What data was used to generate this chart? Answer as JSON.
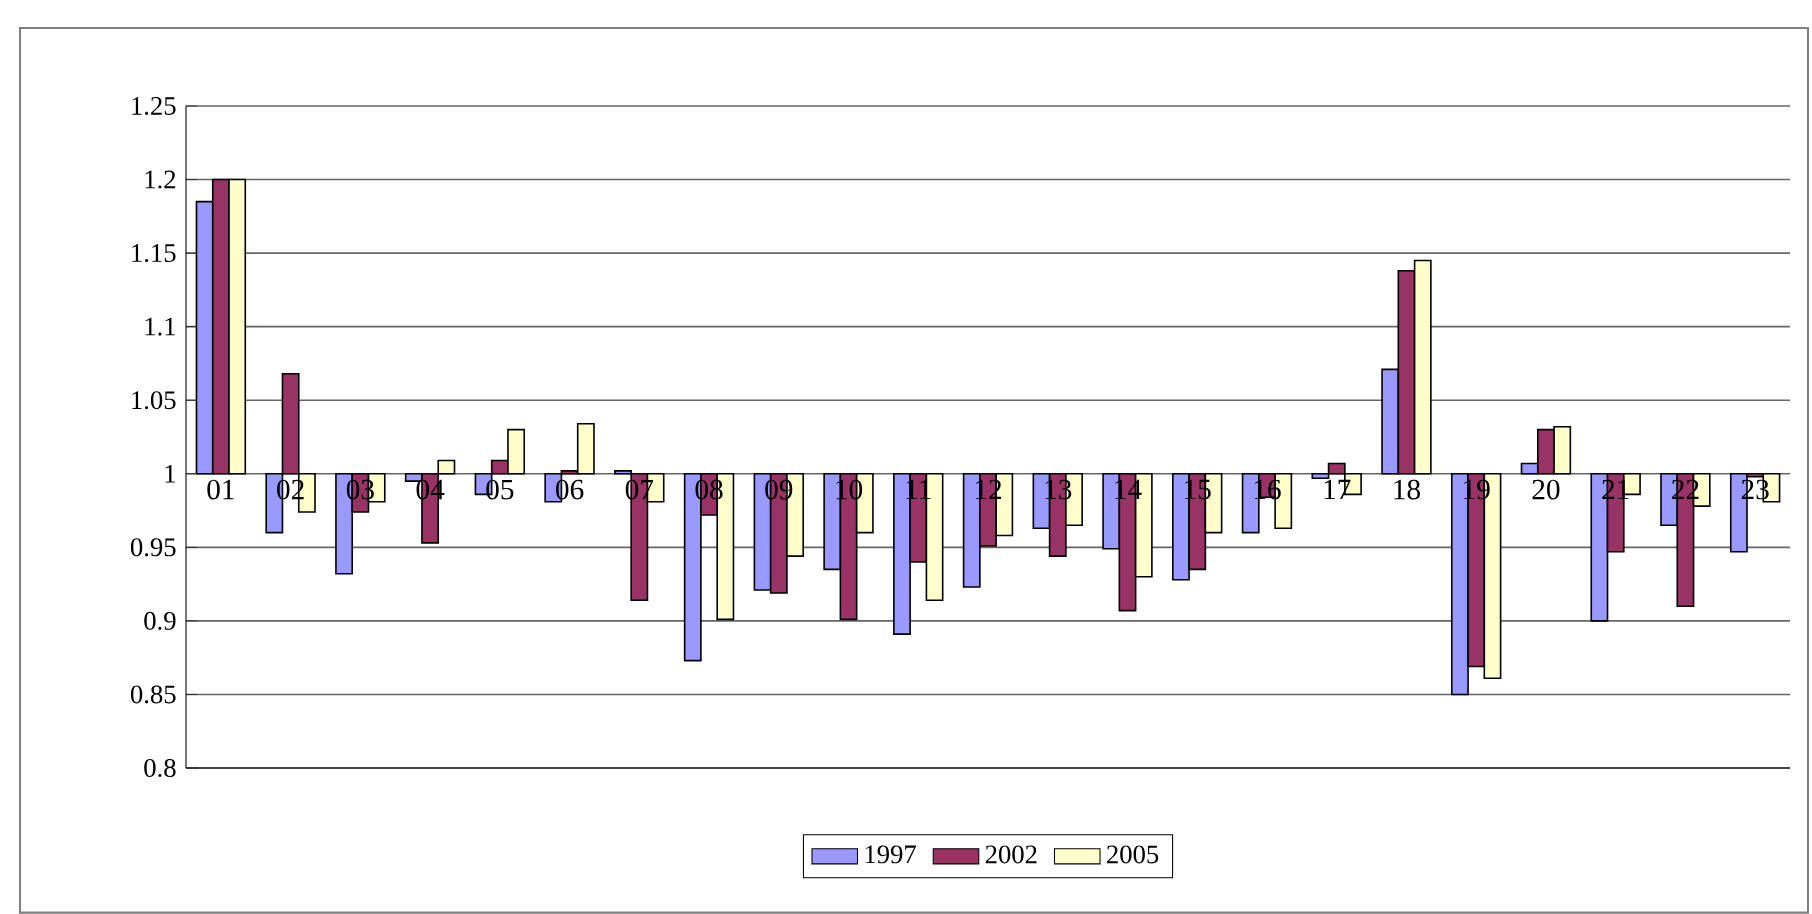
{
  "chart_data": {
    "type": "bar",
    "categories": [
      "01",
      "02",
      "03",
      "04",
      "05",
      "06",
      "07",
      "08",
      "09",
      "10",
      "11",
      "12",
      "13",
      "14",
      "15",
      "16",
      "17",
      "18",
      "19",
      "20",
      "21",
      "22",
      "23"
    ],
    "series": [
      {
        "name": "1997",
        "color": "#9999ff",
        "base": [
          1,
          1,
          1,
          1,
          1,
          1,
          1,
          1,
          1,
          1,
          1,
          1,
          1,
          1,
          1,
          1,
          1,
          1,
          1,
          1,
          1,
          1,
          1
        ],
        "values": [
          0.185,
          -0.04,
          -0.068,
          -0.005,
          -0.014,
          -0.019,
          0.002,
          -0.127,
          -0.079,
          -0.065,
          -0.109,
          -0.077,
          -0.037,
          -0.051,
          -0.072,
          -0.04,
          -0.003,
          0.071,
          -0.15,
          0.007,
          -0.1,
          -0.035,
          -0.053
        ]
      },
      {
        "name": "2002",
        "color": "#993366",
        "base": [
          1,
          1,
          1,
          1,
          1,
          1,
          1,
          1,
          1,
          1,
          1,
          1,
          1,
          1,
          1,
          1,
          1,
          1,
          1,
          1,
          1,
          1,
          1
        ],
        "values": [
          0.2,
          0.068,
          -0.026,
          -0.047,
          0.009,
          0.002,
          -0.086,
          -0.028,
          -0.081,
          -0.099,
          -0.06,
          -0.049,
          -0.056,
          -0.093,
          -0.065,
          -0.016,
          0.007,
          0.138,
          -0.131,
          0.03,
          -0.053,
          -0.09,
          -0.002
        ]
      },
      {
        "name": "2005",
        "color": "#ffffcc",
        "base": [
          1,
          1,
          1,
          1,
          1,
          1,
          1,
          1,
          1,
          1,
          1,
          1,
          1,
          1,
          1,
          1,
          1,
          1,
          1,
          1,
          1,
          1,
          1
        ],
        "values": [
          0.2,
          -0.026,
          -0.019,
          0.009,
          0.03,
          0.034,
          -0.019,
          -0.099,
          -0.056,
          -0.04,
          -0.086,
          -0.042,
          -0.035,
          -0.07,
          -0.04,
          -0.037,
          -0.014,
          0.145,
          -0.139,
          0.032,
          -0.014,
          -0.022,
          -0.019
        ]
      }
    ],
    "ylim": [
      0.8,
      1.25
    ],
    "yticks": [
      0.8,
      0.85,
      0.9,
      0.95,
      1,
      1.05,
      1.1,
      1.15,
      1.2,
      1.25
    ],
    "grid": "y",
    "legend": "bottom"
  }
}
